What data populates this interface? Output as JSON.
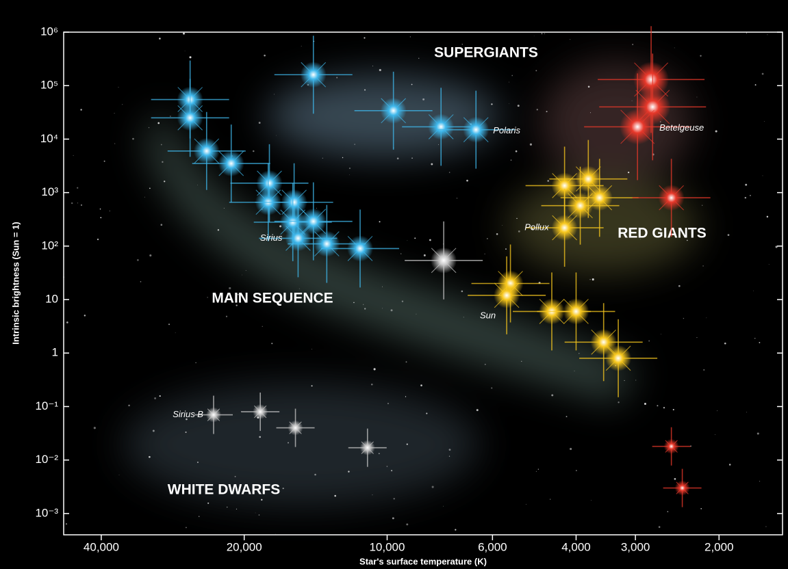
{
  "chart_data": {
    "type": "scatter",
    "xlabel": "Star's surface temperature (K)",
    "ylabel": "Intrinsic brightness (Sun = 1)",
    "xscale": "log",
    "yscale": "log",
    "x_reversed": true,
    "xlim": [
      48000,
      1470
    ],
    "ylim": [
      0.0004,
      1000000
    ],
    "xticks": [
      {
        "value": 40000,
        "label": "40,000"
      },
      {
        "value": 20000,
        "label": "20,000"
      },
      {
        "value": 10000,
        "label": "10,000"
      },
      {
        "value": 6000,
        "label": "6,000"
      },
      {
        "value": 4000,
        "label": "4,000"
      },
      {
        "value": 3000,
        "label": "3,000"
      },
      {
        "value": 2000,
        "label": "2,000"
      }
    ],
    "yticks": [
      {
        "value": 1000000,
        "label": "10⁶"
      },
      {
        "value": 100000,
        "label": "10⁵"
      },
      {
        "value": 10000,
        "label": "10⁴"
      },
      {
        "value": 1000,
        "label": "10³"
      },
      {
        "value": 100,
        "label": "10²"
      },
      10,
      1,
      {
        "value": 0.1,
        "label": "10⁻¹"
      },
      {
        "value": 0.01,
        "label": "10⁻²"
      },
      {
        "value": 0.001,
        "label": "10⁻³"
      }
    ],
    "annotations": [
      "SUPERGIANTS",
      "RED GIANTS",
      "MAIN SEQUENCE",
      "WHITE DWARFS"
    ],
    "series": [
      {
        "color": "#3fb8ec",
        "x": [
          26000,
          26000,
          24000,
          21300,
          17700,
          17800,
          15700,
          15800,
          14300,
          15400,
          13400,
          11400,
          14300,
          9700,
          7700,
          6500
        ],
        "values": [
          55000,
          25000,
          6000,
          3500,
          1500,
          660,
          660,
          280,
          290,
          140,
          110,
          90,
          160000,
          34000,
          17000,
          15000
        ],
        "labels": [
          null,
          null,
          null,
          null,
          null,
          null,
          null,
          null,
          null,
          "Sirius",
          null,
          null,
          null,
          null,
          null,
          "Polaris"
        ]
      },
      {
        "color": "#c8c8c8",
        "x": [
          7600,
          23200,
          18500,
          15600,
          11000
        ],
        "values": [
          54,
          0.07,
          0.08,
          0.04,
          0.017
        ],
        "labels": [
          null,
          "Sirius B",
          null,
          null,
          null
        ]
      },
      {
        "color": "#f8c81e",
        "x": [
          5500,
          5600,
          4500,
          4000,
          3500,
          3260,
          4230,
          3770,
          3920,
          3570,
          4230
        ],
        "values": [
          20,
          12,
          6,
          6,
          1.6,
          0.8,
          1350,
          1800,
          570,
          800,
          220
        ],
        "labels": [
          null,
          "Sun",
          null,
          null,
          null,
          null,
          null,
          null,
          null,
          null,
          "Pollux"
        ]
      },
      {
        "color": "#e8382a",
        "x": [
          2780,
          2760,
          2970,
          2520,
          2520,
          2390
        ],
        "values": [
          130000,
          40000,
          17000,
          800,
          0.018,
          0.003
        ],
        "labels": [
          null,
          null,
          "Betelgeuse",
          null,
          null,
          null
        ]
      }
    ]
  }
}
